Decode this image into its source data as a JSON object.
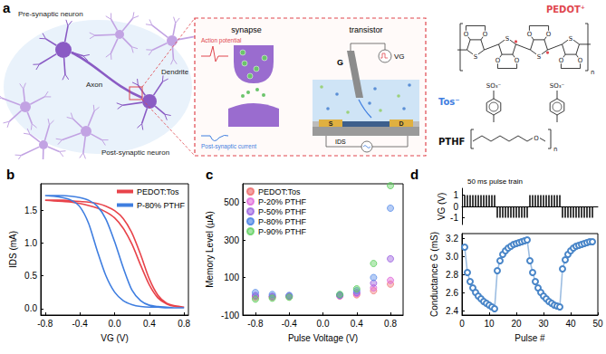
{
  "diagram": {
    "panel_label": "a",
    "neuron": {
      "pre": "Pre-synaptic neuron",
      "post": "Post-synaptic neuron",
      "axon": "Axon",
      "dendrite": "Dendrite"
    },
    "synapse": {
      "title": "synapse",
      "input": "Action potential",
      "output": "Post-synaptic current"
    },
    "transistor": {
      "title": "transistor",
      "gate": "G",
      "gate_voltage": "VG",
      "source": "S",
      "drain": "D",
      "current": "IDS"
    },
    "materials": {
      "pedot": "PEDOT⁺",
      "tos": "Tos⁻",
      "pthf": "PTHF"
    },
    "structure": {
      "sulfur": "S",
      "oxygen": "O",
      "sulfonate": "SO₃⁻",
      "repeat": "n"
    }
  },
  "chart_data": [
    {
      "type": "line",
      "title": "b",
      "xlabel": "VG (V)",
      "ylabel": "IDS (mA)",
      "xlim": [
        -0.85,
        0.85
      ],
      "xticks": [
        -0.8,
        -0.4,
        {
          "value": 0,
          "label": "0.0"
        },
        0.4,
        0.8
      ],
      "ylim": [
        -0.1,
        1.9
      ],
      "yticks": [
        {
          "value": 0,
          "label": "0.0"
        },
        0.5,
        {
          "value": 1,
          "label": "1.0"
        },
        1.5
      ],
      "grid": false,
      "legend": "upper right",
      "line_style": "solid",
      "series": [
        {
          "name": "PEDOT:Tos",
          "color": "#e8434a",
          "x": [
            -0.8,
            -0.7,
            -0.6,
            -0.5,
            -0.4,
            -0.3,
            -0.2,
            -0.1,
            0,
            0.1,
            0.2,
            0.3,
            0.4,
            0.5,
            0.6,
            0.7,
            0.8,
            0.8,
            0.7,
            0.6,
            0.5,
            0.4,
            0.3,
            0.2,
            0.1,
            0,
            -0.1,
            -0.2,
            -0.3,
            -0.4,
            -0.5,
            -0.6,
            -0.7,
            -0.8
          ],
          "values": [
            1.65,
            1.64,
            1.63,
            1.62,
            1.6,
            1.57,
            1.53,
            1.47,
            1.38,
            1.22,
            0.98,
            0.66,
            0.36,
            0.16,
            0.07,
            0.03,
            0.02,
            0.02,
            0.04,
            0.08,
            0.2,
            0.45,
            0.82,
            1.15,
            1.37,
            1.49,
            1.56,
            1.6,
            1.62,
            1.63,
            1.64,
            1.65,
            1.65,
            1.65
          ]
        },
        {
          "name": "P-80% PTHF",
          "color": "#3f7ee0",
          "x": [
            -0.8,
            -0.7,
            -0.6,
            -0.5,
            -0.4,
            -0.3,
            -0.2,
            -0.1,
            0,
            0.1,
            0.2,
            0.3,
            0.4,
            0.5,
            0.6,
            0.7,
            0.8,
            0.8,
            0.7,
            0.6,
            0.5,
            0.4,
            0.3,
            0.2,
            0.1,
            0,
            -0.1,
            -0.2,
            -0.3,
            -0.4,
            -0.5,
            -0.6,
            -0.7,
            -0.8
          ],
          "values": [
            1.72,
            1.71,
            1.69,
            1.65,
            1.55,
            1.3,
            0.88,
            0.5,
            0.25,
            0.12,
            0.06,
            0.03,
            0.02,
            0.02,
            0.01,
            0.01,
            0.01,
            0.01,
            0.01,
            0.02,
            0.03,
            0.05,
            0.12,
            0.28,
            0.62,
            1.02,
            1.36,
            1.56,
            1.65,
            1.69,
            1.71,
            1.72,
            1.72,
            1.72
          ]
        }
      ]
    },
    {
      "type": "scatter",
      "title": "c",
      "xlabel": "Pulse Voltage (V)",
      "ylabel": "Memory Level (µA)",
      "xlim": [
        -0.95,
        0.95
      ],
      "xticks": [
        -0.8,
        -0.4,
        {
          "value": 0,
          "label": "0.0"
        },
        0.4,
        0.8
      ],
      "ylim": [
        -100,
        600
      ],
      "yticks": [
        -100,
        100,
        300,
        500
      ],
      "grid": false,
      "legend": "upper left",
      "marker": "circle",
      "x": [
        -0.8,
        -0.6,
        -0.4,
        0.2,
        0.4,
        0.6,
        0.8
      ],
      "series": [
        {
          "name": "PEDOT:Tos",
          "color": "#f07c7c",
          "values": [
            -5,
            -3,
            -1,
            2,
            8,
            30,
            65
          ]
        },
        {
          "name": "P-20% PTHF",
          "color": "#e065d8",
          "values": [
            0,
            -2,
            0,
            3,
            15,
            45,
            85
          ]
        },
        {
          "name": "P-50% PTHF",
          "color": "#9a5fe0",
          "values": [
            5,
            0,
            2,
            5,
            20,
            70,
            200
          ]
        },
        {
          "name": "P-80% PTHF",
          "color": "#5a8ee8",
          "values": [
            20,
            10,
            5,
            8,
            30,
            100,
            470
          ]
        },
        {
          "name": "P-90% PTHF",
          "color": "#5ccf5c",
          "values": [
            -15,
            -10,
            -5,
            10,
            40,
            175,
            590
          ]
        }
      ]
    },
    {
      "type": "bar",
      "title": "d",
      "annotation": "50 ms pulse train",
      "ylabel": "VG (V)",
      "xlim": [
        0,
        50
      ],
      "ylim": [
        -1.6,
        1.6
      ],
      "yticks": [
        -1,
        0,
        1
      ],
      "tick_labels": "y",
      "grid": false,
      "color": "#000000",
      "x": [
        1,
        2,
        3,
        4,
        5,
        6,
        7,
        8,
        9,
        10,
        11,
        12,
        13,
        14,
        15,
        16,
        17,
        18,
        19,
        20,
        21,
        22,
        23,
        24,
        25,
        26,
        27,
        28,
        29,
        30,
        31,
        32,
        33,
        34,
        35,
        36,
        37,
        38,
        39,
        40,
        41,
        42,
        43,
        44,
        45,
        46,
        47,
        48
      ],
      "values": [
        1,
        1,
        1,
        1,
        1,
        1,
        1,
        1,
        1,
        1,
        1,
        1,
        -1,
        -1,
        -1,
        -1,
        -1,
        -1,
        -1,
        -1,
        -1,
        -1,
        -1,
        -1,
        1,
        1,
        1,
        1,
        1,
        1,
        1,
        1,
        1,
        1,
        1,
        1,
        -1,
        -1,
        -1,
        -1,
        -1,
        -1,
        -1,
        -1,
        -1,
        -1,
        -1,
        -1
      ]
    },
    {
      "type": "line",
      "xlabel": "Pulse #",
      "ylabel": "Conductance G (mS)",
      "xlim": [
        0,
        50
      ],
      "xticks": [
        0,
        10,
        20,
        30,
        40,
        50
      ],
      "ylim": [
        2.35,
        3.25
      ],
      "yticks": [
        2.4,
        2.6,
        2.8,
        {
          "value": 3,
          "label": "3.0"
        },
        3.2
      ],
      "grid": false,
      "marker": "open circle",
      "line_style": "solid",
      "color": "#4a86c8",
      "x": [
        1,
        2,
        3,
        4,
        5,
        6,
        7,
        8,
        9,
        10,
        11,
        12,
        13,
        14,
        15,
        16,
        17,
        18,
        19,
        20,
        21,
        22,
        23,
        24,
        25,
        26,
        27,
        28,
        29,
        30,
        31,
        32,
        33,
        34,
        35,
        36,
        37,
        38,
        39,
        40,
        41,
        42,
        43,
        44,
        45,
        46,
        47,
        48
      ],
      "values": [
        3.1,
        2.82,
        2.72,
        2.65,
        2.6,
        2.56,
        2.53,
        2.5,
        2.48,
        2.46,
        2.44,
        2.42,
        2.84,
        2.95,
        3.02,
        3.06,
        3.09,
        3.11,
        3.13,
        3.14,
        3.15,
        3.16,
        3.17,
        3.18,
        2.95,
        2.82,
        2.72,
        2.65,
        2.6,
        2.56,
        2.53,
        2.5,
        2.48,
        2.46,
        2.45,
        2.44,
        2.86,
        2.96,
        3.02,
        3.06,
        3.09,
        3.11,
        3.12,
        3.13,
        3.14,
        3.15,
        3.16,
        3.16
      ]
    }
  ]
}
